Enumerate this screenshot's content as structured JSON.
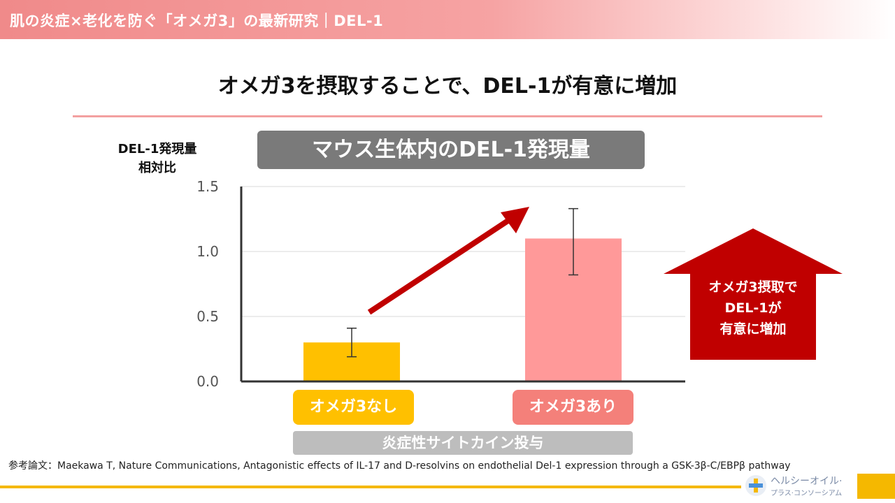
{
  "header": {
    "title": "肌の炎症×老化を防ぐ「オメガ3」の最新研究｜DEL-1"
  },
  "main_title": "オメガ3を摂取することで、DEL-1が有意に増加",
  "chart_data": {
    "type": "bar",
    "title": "マウス生体内のDEL-1発現量",
    "ylabel_line1": "DEL-1発現量",
    "ylabel_line2": "相対比",
    "categories": [
      "オメガ3なし",
      "オメガ3あり"
    ],
    "values": [
      0.3,
      1.1
    ],
    "error_low": [
      0.19,
      0.82
    ],
    "error_high": [
      0.41,
      1.33
    ],
    "ylim": [
      0,
      1.5
    ],
    "yticks": [
      "0.0",
      "0.5",
      "1.0",
      "1.5"
    ],
    "ytick_values": [
      0,
      0.5,
      1.0,
      1.5
    ],
    "grid": true,
    "bar_colors": [
      "#ffc000",
      "#ff9999"
    ],
    "category_box_colors": [
      "#ffc000",
      "#f4807a"
    ],
    "x_group_label": "炎症性サイトカイン投与"
  },
  "callout": {
    "line1": "オメガ3摂取で",
    "line2": "DEL-1が",
    "line3": "有意に増加",
    "color": "#c00000"
  },
  "trend_arrow_color": "#c00000",
  "reference": "参考論文：Maekawa T, Nature Communications, Antagonistic effects of IL-17 and D-resolvins on endothelial Del-1 expression through a GSK-3β-C/EBPβ pathway",
  "logo": {
    "line1": "ヘルシーオイル·",
    "line2": "プラス·コンソーシアム"
  },
  "colors": {
    "header": "#f08a8a",
    "accent_rule": "#f3a0a0",
    "footer": "#f5b800"
  }
}
